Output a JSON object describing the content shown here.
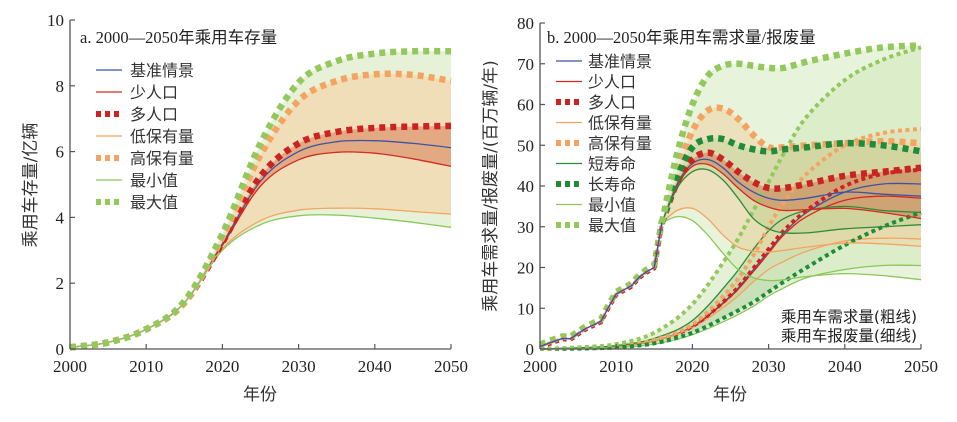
{
  "chart_data": [
    {
      "id": "a",
      "type": "line",
      "title": "a. 2000—2050年乘用车存量",
      "xlabel": "年份",
      "ylabel": "乘用车存量/亿辆",
      "xlim": [
        2000,
        2050
      ],
      "ylim": [
        0,
        10
      ],
      "xticks": [
        2000,
        2010,
        2020,
        2030,
        2040,
        2050
      ],
      "yticks": [
        0,
        2,
        4,
        6,
        8,
        10
      ],
      "legend_position": "top-left",
      "x": [
        2000,
        2005,
        2010,
        2015,
        2020,
        2025,
        2030,
        2035,
        2040,
        2045,
        2050
      ],
      "series": [
        {
          "name": "基准情景",
          "color": "#3a54a4",
          "style": "solid",
          "values": [
            0.05,
            0.2,
            0.6,
            1.4,
            3.2,
            5.1,
            6.0,
            6.3,
            6.33,
            6.25,
            6.12
          ]
        },
        {
          "name": "少人口",
          "color": "#d42a1f",
          "style": "solid",
          "values": [
            0.05,
            0.2,
            0.6,
            1.4,
            3.15,
            4.95,
            5.75,
            5.98,
            5.95,
            5.78,
            5.55
          ]
        },
        {
          "name": "多人口",
          "color": "#cc2222",
          "style": "dotted",
          "values": [
            0.05,
            0.2,
            0.6,
            1.4,
            3.25,
            5.25,
            6.25,
            6.6,
            6.72,
            6.76,
            6.78
          ]
        },
        {
          "name": "低保有量",
          "color": "#f4a460",
          "style": "solid",
          "values": [
            0.05,
            0.2,
            0.6,
            1.4,
            3.05,
            3.9,
            4.22,
            4.28,
            4.26,
            4.18,
            4.1
          ]
        },
        {
          "name": "高保有量",
          "color": "#f4a460",
          "style": "dotted",
          "values": [
            0.05,
            0.2,
            0.6,
            1.4,
            3.4,
            5.9,
            7.55,
            8.15,
            8.35,
            8.33,
            8.15
          ]
        },
        {
          "name": "最小值",
          "color": "#8cc65a",
          "style": "solid",
          "values": [
            0.05,
            0.2,
            0.6,
            1.4,
            3.0,
            3.78,
            4.05,
            4.07,
            3.98,
            3.85,
            3.7
          ]
        },
        {
          "name": "最大值",
          "color": "#92c85c",
          "style": "dotted",
          "values": [
            0.05,
            0.2,
            0.6,
            1.45,
            3.5,
            6.25,
            8.1,
            8.75,
            8.98,
            9.05,
            9.05
          ]
        }
      ],
      "bands": [
        {
          "name": "min-max range",
          "lower": "最小值",
          "upper": "最大值",
          "color": "#e3f0d4"
        },
        {
          "name": "low-high stock range",
          "lower": "低保有量",
          "upper": "高保有量",
          "color": "#f0dcb4"
        },
        {
          "name": "population range",
          "lower": "少人口",
          "upper": "多人口",
          "color": "#e0a07a"
        }
      ]
    },
    {
      "id": "b",
      "type": "line",
      "title": "b. 2000—2050年乘用车需求量/报废量",
      "xlabel": "年份",
      "ylabel": "乘用车需求量/报废量/(百万辆/年)",
      "xlim": [
        2000,
        2050
      ],
      "ylim": [
        0,
        80
      ],
      "xticks": [
        2000,
        2010,
        2020,
        2030,
        2040,
        2050
      ],
      "yticks": [
        0,
        10,
        20,
        30,
        40,
        50,
        60,
        70,
        80
      ],
      "legend_position": "top-left",
      "annotations": [
        "乘用车需求量(粗线)",
        "乘用车报废量(细线)"
      ],
      "history": {
        "x": [
          2000,
          2001,
          2002,
          2003,
          2004,
          2005,
          2006,
          2007,
          2008,
          2009,
          2010,
          2011,
          2012,
          2013,
          2014,
          2015,
          2016
        ],
        "values": [
          0.6,
          1.3,
          2.0,
          2.6,
          2.5,
          3.8,
          5.0,
          5.9,
          6.8,
          10.3,
          13.5,
          14.5,
          15.5,
          17.6,
          19.0,
          20.0,
          31.0
        ]
      },
      "x": [
        2016,
        2018,
        2020,
        2022,
        2024,
        2026,
        2028,
        2030,
        2032,
        2035,
        2040,
        2045,
        2050
      ],
      "demand_series": [
        {
          "name": "基准情景",
          "color": "#3a54a4",
          "style": "solid",
          "values": [
            31.0,
            40.5,
            45.5,
            46.5,
            44.5,
            41.0,
            38.5,
            37.0,
            36.5,
            37.0,
            38.5,
            38.0,
            37.5
          ]
        },
        {
          "name": "少人口",
          "color": "#d42a1f",
          "style": "solid",
          "values": [
            31.0,
            40.0,
            44.8,
            45.3,
            43.0,
            39.5,
            36.5,
            34.8,
            34.0,
            34.2,
            34.5,
            33.5,
            32.0
          ]
        },
        {
          "name": "多人口",
          "color": "#cc2222",
          "style": "dotted",
          "values": [
            31.0,
            41.0,
            46.5,
            48.2,
            46.5,
            43.5,
            41.0,
            39.5,
            39.5,
            40.5,
            42.5,
            43.5,
            44.5
          ]
        },
        {
          "name": "低保有量",
          "color": "#f4a460",
          "style": "solid",
          "values": [
            31.0,
            34.0,
            34.5,
            32.0,
            28.0,
            25.0,
            24.0,
            23.8,
            24.2,
            25.0,
            26.0,
            25.8,
            25.2
          ]
        },
        {
          "name": "高保有量",
          "color": "#f4a460",
          "style": "dotted",
          "values": [
            31.0,
            43.5,
            53.5,
            58.5,
            59.0,
            56.5,
            52.5,
            49.5,
            49.5,
            50.0,
            50.5,
            51.0,
            50.5
          ]
        },
        {
          "name": "短寿命",
          "color": "#2e8b3a",
          "style": "solid",
          "values": [
            31.0,
            39.5,
            43.5,
            44.0,
            41.5,
            37.0,
            32.0,
            29.5,
            28.5,
            28.5,
            29.5,
            30.0,
            30.5
          ]
        },
        {
          "name": "长寿命",
          "color": "#1e8c3a",
          "style": "dotted",
          "values": [
            31.0,
            42.0,
            49.5,
            51.5,
            51.5,
            50.0,
            49.0,
            48.5,
            49.0,
            49.5,
            50.5,
            50.0,
            48.5
          ]
        },
        {
          "name": "最小值",
          "color": "#8cc65a",
          "style": "solid",
          "values": [
            31.0,
            32.5,
            31.5,
            28.0,
            23.5,
            19.5,
            17.5,
            16.8,
            17.0,
            17.8,
            18.5,
            18.0,
            17.0
          ]
        },
        {
          "name": "最大值",
          "color": "#92c85c",
          "style": "dotted",
          "values": [
            31.0,
            48.0,
            60.0,
            67.0,
            69.5,
            70.0,
            69.5,
            69.0,
            69.0,
            70.5,
            72.5,
            74.0,
            74.5
          ]
        }
      ],
      "scrap_x": [
        2000,
        2005,
        2010,
        2015,
        2020,
        2025,
        2028,
        2030,
        2032,
        2035,
        2040,
        2045,
        2050
      ],
      "scrap_series": [
        {
          "name": "基准情景",
          "color": "#3a54a4",
          "style": "solid",
          "values": [
            0,
            0.2,
            0.6,
            2.0,
            5.5,
            13.0,
            19.5,
            24.0,
            28.5,
            33.5,
            38.5,
            40.5,
            40.5
          ]
        },
        {
          "name": "少人口",
          "color": "#d42a1f",
          "style": "solid",
          "values": [
            0,
            0.2,
            0.6,
            2.0,
            5.4,
            12.8,
            19.0,
            23.5,
            28.0,
            32.5,
            36.5,
            37.5,
            37.0
          ]
        },
        {
          "name": "多人口",
          "color": "#cc2222",
          "style": "dotted",
          "values": [
            0,
            0.2,
            0.6,
            2.0,
            5.6,
            13.2,
            19.8,
            24.5,
            29.0,
            34.0,
            40.0,
            43.0,
            44.0
          ]
        },
        {
          "name": "低保有量",
          "color": "#f4a460",
          "style": "solid",
          "values": [
            0,
            0.2,
            0.6,
            2.0,
            5.2,
            11.5,
            16.5,
            19.5,
            21.5,
            24.0,
            26.5,
            27.2,
            27.0
          ]
        },
        {
          "name": "高保有量",
          "color": "#f4a460",
          "style": "dotted",
          "values": [
            0,
            0.2,
            0.6,
            2.2,
            6.0,
            15.0,
            23.0,
            30.0,
            36.0,
            43.0,
            50.0,
            53.0,
            54.0
          ]
        },
        {
          "name": "短寿命",
          "color": "#2e8b3a",
          "style": "solid",
          "values": [
            0,
            0.3,
            0.8,
            2.6,
            7.0,
            17.0,
            24.5,
            29.0,
            32.0,
            34.0,
            35.0,
            34.0,
            33.5
          ]
        },
        {
          "name": "长寿命",
          "color": "#1e8c3a",
          "style": "dotted",
          "values": [
            0,
            0.1,
            0.4,
            1.4,
            4.0,
            8.5,
            11.5,
            14.0,
            16.5,
            20.0,
            25.5,
            30.0,
            33.5
          ]
        },
        {
          "name": "最小值",
          "color": "#8cc65a",
          "style": "solid",
          "values": [
            0,
            0.1,
            0.3,
            1.2,
            3.5,
            7.5,
            10.5,
            13.0,
            15.0,
            17.5,
            19.5,
            20.5,
            20.5
          ]
        },
        {
          "name": "最大值",
          "color": "#92c85c",
          "style": "dotted",
          "values": [
            0,
            0.4,
            1.2,
            4.0,
            11.0,
            24.0,
            34.0,
            41.0,
            48.0,
            57.0,
            66.0,
            71.0,
            74.0
          ]
        }
      ]
    }
  ]
}
